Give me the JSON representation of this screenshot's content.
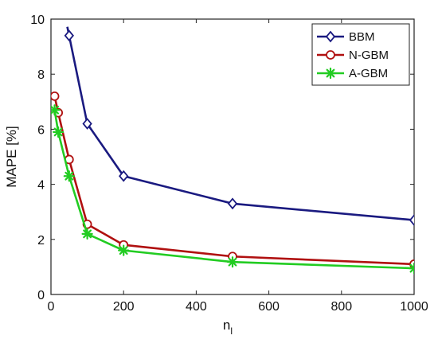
{
  "chart_data": {
    "type": "line",
    "xlabel": "n",
    "xlabel_sub": "l",
    "ylabel": "MAPE [%]",
    "xlim": [
      0,
      1000
    ],
    "ylim": [
      0,
      10
    ],
    "xticks": [
      0,
      200,
      400,
      600,
      800,
      1000
    ],
    "yticks": [
      0,
      2,
      4,
      6,
      8,
      10
    ],
    "grid": false,
    "legend_position": "top-right",
    "series": [
      {
        "name": "BBM",
        "color": "#1a1a80",
        "marker": "diamond",
        "x": [
          50,
          100,
          200,
          500,
          1000
        ],
        "y": [
          9.4,
          6.2,
          4.3,
          3.3,
          2.7
        ],
        "clip_from_x": 45
      },
      {
        "name": "N-GBM",
        "color": "#b01010",
        "marker": "circle",
        "x": [
          10,
          20,
          50,
          100,
          200,
          500,
          1000
        ],
        "y": [
          7.2,
          6.6,
          4.9,
          2.55,
          1.8,
          1.38,
          1.1
        ]
      },
      {
        "name": "A-GBM",
        "color": "#22cc22",
        "marker": "asterisk",
        "x": [
          10,
          20,
          50,
          100,
          200,
          500,
          1000
        ],
        "y": [
          6.7,
          5.9,
          4.3,
          2.2,
          1.6,
          1.18,
          0.95
        ]
      }
    ]
  }
}
